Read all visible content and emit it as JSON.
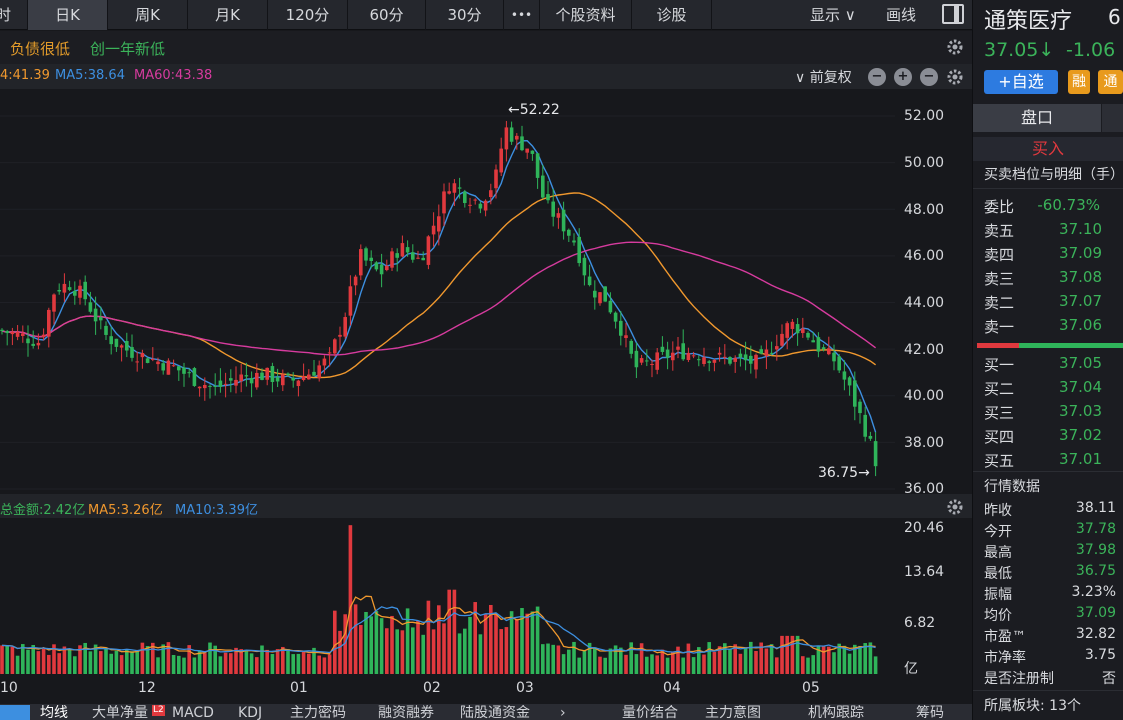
{
  "top_tabs": [
    "时",
    "日K",
    "周K",
    "月K",
    "120分",
    "60分",
    "30分",
    "•••",
    "个股资料",
    "诊股"
  ],
  "top_right": {
    "display": "显示 ∨",
    "draw": "画线"
  },
  "info_tags": [
    "负债很低",
    "创一年新低"
  ],
  "ma_legend": {
    "ma_cut": "4:41.39",
    "ma5": "MA5:38.64",
    "ma60": "MA60:43.38",
    "adjust": "∨ 前复权"
  },
  "price_axis": [
    "52.00",
    "50.00",
    "48.00",
    "46.00",
    "44.00",
    "42.00",
    "40.00",
    "38.00",
    "36.00"
  ],
  "high_label": "←52.22",
  "low_label": "36.75→",
  "volume_legend": {
    "total": "总金额:2.42亿",
    "ma5": "MA5:3.26亿",
    "ma10": "MA10:3.39亿"
  },
  "volume_axis": [
    "20.46",
    "13.64",
    "6.82",
    "亿"
  ],
  "x_axis_months": [
    "10",
    "12",
    "01",
    "02",
    "03",
    "04",
    "05"
  ],
  "bottom_tabs": [
    "均线",
    "大单净量",
    "MACD",
    "KDJ",
    "主力密码",
    "融资融券",
    "陆股通资金",
    "量价结合",
    "主力意图",
    "机构跟踪",
    "筹码"
  ],
  "l2_badge": "L2",
  "stock": {
    "name": "通策医疗",
    "code_prefix": "6",
    "price": "37.05↓",
    "change": "-1.06",
    "add_watch": "+自选",
    "badge_rong": "融",
    "badge_tong": "通"
  },
  "panel_tabs": [
    "盘口"
  ],
  "buy_label": "买入",
  "orderbook_title": "买卖档位与明细（手）",
  "weibi": {
    "label": "委比",
    "value": "-60.73%"
  },
  "asks": [
    {
      "label": "卖五",
      "price": "37.10"
    },
    {
      "label": "卖四",
      "price": "37.09"
    },
    {
      "label": "卖三",
      "price": "37.08"
    },
    {
      "label": "卖二",
      "price": "37.07"
    },
    {
      "label": "卖一",
      "price": "37.06"
    }
  ],
  "bids": [
    {
      "label": "买一",
      "price": "37.05"
    },
    {
      "label": "买二",
      "price": "37.04"
    },
    {
      "label": "买三",
      "price": "37.03"
    },
    {
      "label": "买四",
      "price": "37.02"
    },
    {
      "label": "买五",
      "price": "37.01"
    }
  ],
  "quote_title": "行情数据",
  "quotes": [
    {
      "label": "昨收",
      "value": "38.11",
      "color": "#d8dade"
    },
    {
      "label": "今开",
      "value": "37.78",
      "color": "#3bb35a"
    },
    {
      "label": "最高",
      "value": "37.98",
      "color": "#3bb35a"
    },
    {
      "label": "最低",
      "value": "36.75",
      "color": "#3bb35a"
    },
    {
      "label": "振幅",
      "value": "3.23%",
      "color": "#d8dade"
    },
    {
      "label": "均价",
      "value": "37.09",
      "color": "#3bb35a"
    },
    {
      "label": "市盈™",
      "value": "32.82",
      "color": "#d8dade"
    },
    {
      "label": "市净率",
      "value": "3.75",
      "color": "#d8dade"
    },
    {
      "label": "是否注册制",
      "value": "否",
      "color": "#d8dade"
    }
  ],
  "sector": "所属板块: 13个",
  "colors": {
    "up": "#e0393e",
    "down": "#2fb45a",
    "ma5": "#3d8fe0",
    "ma20": "#f0982e",
    "ma60": "#d63b9e"
  }
}
